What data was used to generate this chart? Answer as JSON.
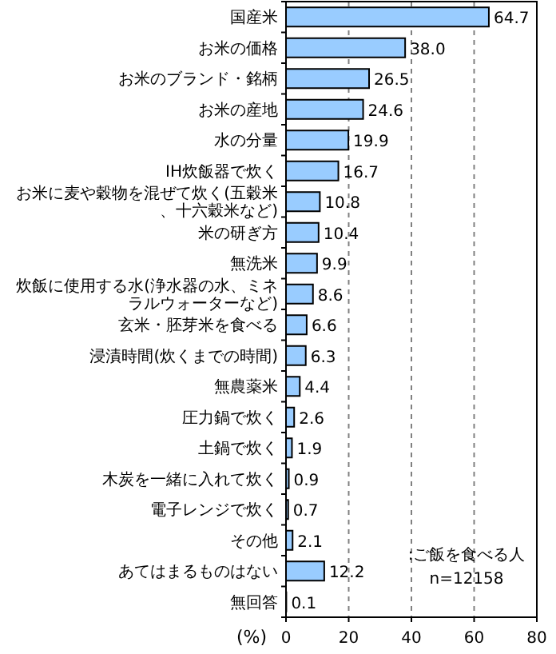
{
  "chart_data": {
    "type": "bar",
    "orientation": "horizontal",
    "categories": [
      "国産米",
      "お米の価格",
      "お米のブランド・銘柄",
      "お米の産地",
      "水の分量",
      "IH炊飯器で炊く",
      "お米に麦や穀物を混ぜて炊く(五穀米、十六穀米など)",
      "米の研ぎ方",
      "無洗米",
      "炊飯に使用する水(浄水器の水、ミネラルウォーターなど)",
      "玄米・胚芽米を食べる",
      "浸漬時間(炊くまでの時間)",
      "無農薬米",
      "圧力鍋で炊く",
      "土鍋で炊く",
      "木炭を一緒に入れて炊く",
      "電子レンジで炊く",
      "その他",
      "あてはまるものはない",
      "無回答"
    ],
    "values": [
      64.7,
      38.0,
      26.5,
      24.6,
      19.9,
      16.7,
      10.8,
      10.4,
      9.9,
      8.6,
      6.6,
      6.3,
      4.4,
      2.6,
      1.9,
      0.9,
      0.7,
      2.1,
      12.2,
      0.1
    ],
    "value_labels": [
      "64.7",
      "38.0",
      "26.5",
      "24.6",
      "19.9",
      "16.7",
      "10.8",
      "10.4",
      "9.9",
      "8.6",
      "6.6",
      "6.3",
      "4.4",
      "2.6",
      "1.9",
      "0.9",
      "0.7",
      "2.1",
      "12.2",
      "0.1"
    ],
    "color": "#99ccff",
    "xlim": [
      0,
      80
    ],
    "xticks": [
      0,
      20,
      40,
      60,
      80
    ],
    "xlabel": "(%)",
    "grid": "x",
    "annotations": [
      ":ご飯を食べる人",
      "n=12158"
    ]
  }
}
